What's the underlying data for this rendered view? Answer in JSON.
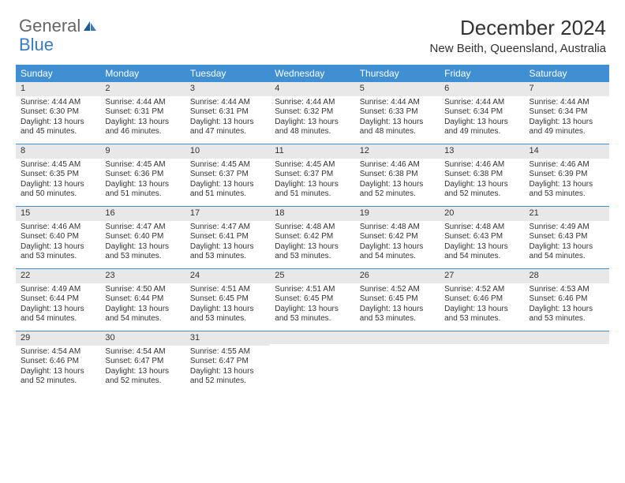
{
  "logo": {
    "text_general": "General",
    "text_blue": "Blue"
  },
  "title": "December 2024",
  "location": "New Beith, Queensland, Australia",
  "colors": {
    "header_bg": "#3f8fd2",
    "header_text": "#ffffff",
    "daynum_bg": "#e8e8e8",
    "week_border": "#3f8fd2",
    "text": "#333333",
    "logo_blue": "#3a7bbf"
  },
  "day_names": [
    "Sunday",
    "Monday",
    "Tuesday",
    "Wednesday",
    "Thursday",
    "Friday",
    "Saturday"
  ],
  "weeks": [
    [
      {
        "num": "1",
        "sunrise": "Sunrise: 4:44 AM",
        "sunset": "Sunset: 6:30 PM",
        "daylight1": "Daylight: 13 hours",
        "daylight2": "and 45 minutes."
      },
      {
        "num": "2",
        "sunrise": "Sunrise: 4:44 AM",
        "sunset": "Sunset: 6:31 PM",
        "daylight1": "Daylight: 13 hours",
        "daylight2": "and 46 minutes."
      },
      {
        "num": "3",
        "sunrise": "Sunrise: 4:44 AM",
        "sunset": "Sunset: 6:31 PM",
        "daylight1": "Daylight: 13 hours",
        "daylight2": "and 47 minutes."
      },
      {
        "num": "4",
        "sunrise": "Sunrise: 4:44 AM",
        "sunset": "Sunset: 6:32 PM",
        "daylight1": "Daylight: 13 hours",
        "daylight2": "and 48 minutes."
      },
      {
        "num": "5",
        "sunrise": "Sunrise: 4:44 AM",
        "sunset": "Sunset: 6:33 PM",
        "daylight1": "Daylight: 13 hours",
        "daylight2": "and 48 minutes."
      },
      {
        "num": "6",
        "sunrise": "Sunrise: 4:44 AM",
        "sunset": "Sunset: 6:34 PM",
        "daylight1": "Daylight: 13 hours",
        "daylight2": "and 49 minutes."
      },
      {
        "num": "7",
        "sunrise": "Sunrise: 4:44 AM",
        "sunset": "Sunset: 6:34 PM",
        "daylight1": "Daylight: 13 hours",
        "daylight2": "and 49 minutes."
      }
    ],
    [
      {
        "num": "8",
        "sunrise": "Sunrise: 4:45 AM",
        "sunset": "Sunset: 6:35 PM",
        "daylight1": "Daylight: 13 hours",
        "daylight2": "and 50 minutes."
      },
      {
        "num": "9",
        "sunrise": "Sunrise: 4:45 AM",
        "sunset": "Sunset: 6:36 PM",
        "daylight1": "Daylight: 13 hours",
        "daylight2": "and 51 minutes."
      },
      {
        "num": "10",
        "sunrise": "Sunrise: 4:45 AM",
        "sunset": "Sunset: 6:37 PM",
        "daylight1": "Daylight: 13 hours",
        "daylight2": "and 51 minutes."
      },
      {
        "num": "11",
        "sunrise": "Sunrise: 4:45 AM",
        "sunset": "Sunset: 6:37 PM",
        "daylight1": "Daylight: 13 hours",
        "daylight2": "and 51 minutes."
      },
      {
        "num": "12",
        "sunrise": "Sunrise: 4:46 AM",
        "sunset": "Sunset: 6:38 PM",
        "daylight1": "Daylight: 13 hours",
        "daylight2": "and 52 minutes."
      },
      {
        "num": "13",
        "sunrise": "Sunrise: 4:46 AM",
        "sunset": "Sunset: 6:38 PM",
        "daylight1": "Daylight: 13 hours",
        "daylight2": "and 52 minutes."
      },
      {
        "num": "14",
        "sunrise": "Sunrise: 4:46 AM",
        "sunset": "Sunset: 6:39 PM",
        "daylight1": "Daylight: 13 hours",
        "daylight2": "and 53 minutes."
      }
    ],
    [
      {
        "num": "15",
        "sunrise": "Sunrise: 4:46 AM",
        "sunset": "Sunset: 6:40 PM",
        "daylight1": "Daylight: 13 hours",
        "daylight2": "and 53 minutes."
      },
      {
        "num": "16",
        "sunrise": "Sunrise: 4:47 AM",
        "sunset": "Sunset: 6:40 PM",
        "daylight1": "Daylight: 13 hours",
        "daylight2": "and 53 minutes."
      },
      {
        "num": "17",
        "sunrise": "Sunrise: 4:47 AM",
        "sunset": "Sunset: 6:41 PM",
        "daylight1": "Daylight: 13 hours",
        "daylight2": "and 53 minutes."
      },
      {
        "num": "18",
        "sunrise": "Sunrise: 4:48 AM",
        "sunset": "Sunset: 6:42 PM",
        "daylight1": "Daylight: 13 hours",
        "daylight2": "and 53 minutes."
      },
      {
        "num": "19",
        "sunrise": "Sunrise: 4:48 AM",
        "sunset": "Sunset: 6:42 PM",
        "daylight1": "Daylight: 13 hours",
        "daylight2": "and 54 minutes."
      },
      {
        "num": "20",
        "sunrise": "Sunrise: 4:48 AM",
        "sunset": "Sunset: 6:43 PM",
        "daylight1": "Daylight: 13 hours",
        "daylight2": "and 54 minutes."
      },
      {
        "num": "21",
        "sunrise": "Sunrise: 4:49 AM",
        "sunset": "Sunset: 6:43 PM",
        "daylight1": "Daylight: 13 hours",
        "daylight2": "and 54 minutes."
      }
    ],
    [
      {
        "num": "22",
        "sunrise": "Sunrise: 4:49 AM",
        "sunset": "Sunset: 6:44 PM",
        "daylight1": "Daylight: 13 hours",
        "daylight2": "and 54 minutes."
      },
      {
        "num": "23",
        "sunrise": "Sunrise: 4:50 AM",
        "sunset": "Sunset: 6:44 PM",
        "daylight1": "Daylight: 13 hours",
        "daylight2": "and 54 minutes."
      },
      {
        "num": "24",
        "sunrise": "Sunrise: 4:51 AM",
        "sunset": "Sunset: 6:45 PM",
        "daylight1": "Daylight: 13 hours",
        "daylight2": "and 53 minutes."
      },
      {
        "num": "25",
        "sunrise": "Sunrise: 4:51 AM",
        "sunset": "Sunset: 6:45 PM",
        "daylight1": "Daylight: 13 hours",
        "daylight2": "and 53 minutes."
      },
      {
        "num": "26",
        "sunrise": "Sunrise: 4:52 AM",
        "sunset": "Sunset: 6:45 PM",
        "daylight1": "Daylight: 13 hours",
        "daylight2": "and 53 minutes."
      },
      {
        "num": "27",
        "sunrise": "Sunrise: 4:52 AM",
        "sunset": "Sunset: 6:46 PM",
        "daylight1": "Daylight: 13 hours",
        "daylight2": "and 53 minutes."
      },
      {
        "num": "28",
        "sunrise": "Sunrise: 4:53 AM",
        "sunset": "Sunset: 6:46 PM",
        "daylight1": "Daylight: 13 hours",
        "daylight2": "and 53 minutes."
      }
    ],
    [
      {
        "num": "29",
        "sunrise": "Sunrise: 4:54 AM",
        "sunset": "Sunset: 6:46 PM",
        "daylight1": "Daylight: 13 hours",
        "daylight2": "and 52 minutes."
      },
      {
        "num": "30",
        "sunrise": "Sunrise: 4:54 AM",
        "sunset": "Sunset: 6:47 PM",
        "daylight1": "Daylight: 13 hours",
        "daylight2": "and 52 minutes."
      },
      {
        "num": "31",
        "sunrise": "Sunrise: 4:55 AM",
        "sunset": "Sunset: 6:47 PM",
        "daylight1": "Daylight: 13 hours",
        "daylight2": "and 52 minutes."
      },
      {
        "empty": true
      },
      {
        "empty": true
      },
      {
        "empty": true
      },
      {
        "empty": true
      }
    ]
  ]
}
